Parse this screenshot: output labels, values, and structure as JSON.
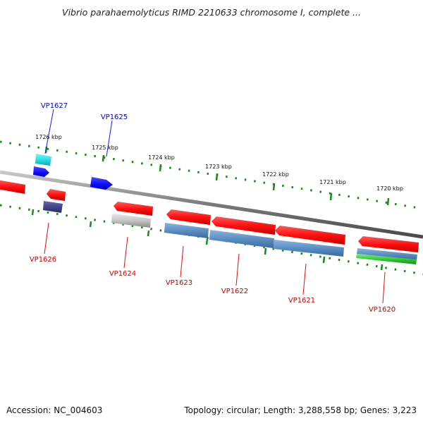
{
  "title": "Vibrio parahaemolyticus RIMD 2210633 chromosome I, complete ...",
  "footer": {
    "accession": "Accession: NC_004603",
    "summary": "Topology: circular; Length: 3,288,558 bp; Genes: 3,223"
  },
  "scale_labels": [
    "1726 kbp",
    "1725 kbp",
    "1724 kbp",
    "1723 kbp",
    "1722 kbp",
    "1721 kbp",
    "1720 kbp"
  ],
  "genes_upper": [
    {
      "label": "VP1627",
      "color": "#0000cc"
    },
    {
      "label": "VP1625",
      "color": "#0000cc"
    }
  ],
  "genes_lower": [
    {
      "label": "VP1626",
      "color": "#cc0000"
    },
    {
      "label": "VP1624",
      "color": "#cc0000"
    },
    {
      "label": "VP1623",
      "color": "#cc0000"
    },
    {
      "label": "VP1622",
      "color": "#cc0000"
    },
    {
      "label": "VP1621",
      "color": "#cc0000"
    },
    {
      "label": "VP1620",
      "color": "#cc0000"
    }
  ],
  "colors": {
    "backbone": "#8a8a8a",
    "tick": "#1a8a1a",
    "gene_red": "#ff1a1a",
    "gene_blue": "#1a1aff",
    "gene_cyan": "#33e6e6",
    "gene_steelblue": "#5b8fc4",
    "gene_navy": "#4a4a90",
    "gene_gray": "#b8b8b8",
    "gene_green": "#33cc33"
  }
}
